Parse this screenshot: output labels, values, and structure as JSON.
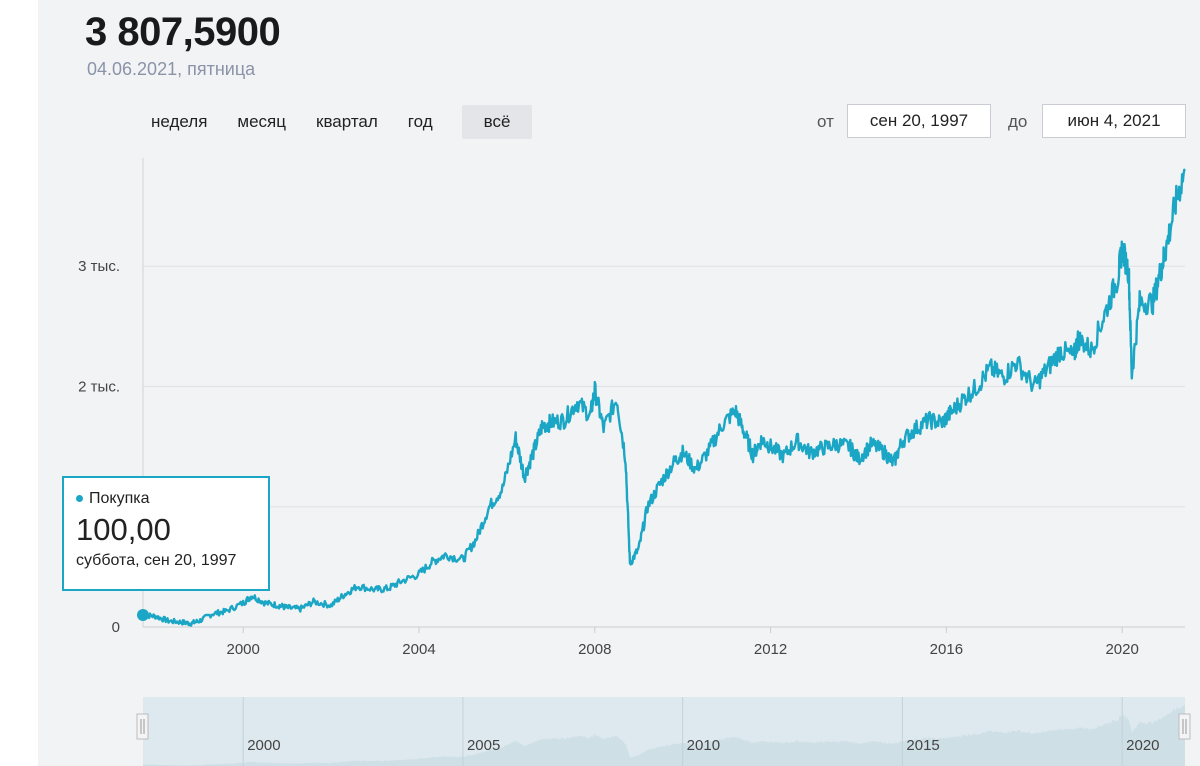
{
  "header": {
    "price": "3 807,5900",
    "date": "04.06.2021, пятница"
  },
  "ranges": {
    "week": "неделя",
    "month": "месяц",
    "quarter": "квартал",
    "year": "год",
    "all": "всё"
  },
  "date_range": {
    "from_label": "от",
    "from_value": "сен 20, 1997",
    "to_label": "до",
    "to_value": "июн 4, 2021"
  },
  "tooltip": {
    "series": "Покупка",
    "value": "100,00",
    "date": "суббота, сен 20, 1997"
  },
  "colors": {
    "line": "#1aa6c4",
    "navigator_fill": "#dde9ee"
  },
  "chart_data": {
    "type": "line",
    "title": "",
    "xlabel": "",
    "ylabel": "",
    "xlim": [
      1997.72,
      2021.43
    ],
    "ylim": [
      0,
      3900
    ],
    "y_ticks": [
      {
        "value": 0,
        "label": "0"
      },
      {
        "value": 1000,
        "label": ""
      },
      {
        "value": 2000,
        "label": "2 тыс."
      },
      {
        "value": 3000,
        "label": "3 тыс."
      }
    ],
    "x_ticks": [
      {
        "value": 2000,
        "label": "2000"
      },
      {
        "value": 2004,
        "label": "2004"
      },
      {
        "value": 2008,
        "label": "2008"
      },
      {
        "value": 2012,
        "label": "2012"
      },
      {
        "value": 2016,
        "label": "2016"
      },
      {
        "value": 2020,
        "label": "2020"
      }
    ],
    "navigator_ticks": [
      {
        "value": 2000,
        "label": "2000"
      },
      {
        "value": 2005,
        "label": "2005"
      },
      {
        "value": 2010,
        "label": "2010"
      },
      {
        "value": 2015,
        "label": "2015"
      },
      {
        "value": 2020,
        "label": "2020"
      }
    ],
    "series": [
      {
        "name": "Покупка",
        "x": [
          1997.72,
          1998.0,
          1998.3,
          1998.6,
          1998.8,
          1999.0,
          1999.3,
          1999.6,
          2000.0,
          2000.2,
          2000.5,
          2000.8,
          2001.0,
          2001.3,
          2001.6,
          2002.0,
          2002.3,
          2002.6,
          2003.0,
          2003.3,
          2003.6,
          2004.0,
          2004.3,
          2004.6,
          2005.0,
          2005.3,
          2005.6,
          2005.9,
          2006.2,
          2006.4,
          2006.6,
          2006.8,
          2007.0,
          2007.3,
          2007.6,
          2007.9,
          2008.0,
          2008.2,
          2008.5,
          2008.7,
          2008.8,
          2009.0,
          2009.2,
          2009.5,
          2009.8,
          2010.0,
          2010.3,
          2010.6,
          2010.9,
          2011.2,
          2011.4,
          2011.6,
          2011.8,
          2012.0,
          2012.3,
          2012.6,
          2012.9,
          2013.2,
          2013.5,
          2013.8,
          2014.0,
          2014.3,
          2014.6,
          2014.8,
          2015.0,
          2015.3,
          2015.6,
          2015.9,
          2016.1,
          2016.4,
          2016.7,
          2017.0,
          2017.3,
          2017.6,
          2018.0,
          2018.3,
          2018.6,
          2018.9,
          2019.0,
          2019.3,
          2019.6,
          2019.9,
          2020.0,
          2020.15,
          2020.22,
          2020.4,
          2020.7,
          2020.9,
          2021.0,
          2021.2,
          2021.43
        ],
        "values": [
          100,
          90,
          50,
          40,
          30,
          50,
          110,
          130,
          200,
          260,
          200,
          180,
          160,
          150,
          210,
          180,
          270,
          340,
          310,
          320,
          380,
          440,
          540,
          600,
          560,
          730,
          1000,
          1150,
          1570,
          1250,
          1450,
          1670,
          1700,
          1720,
          1870,
          1760,
          1970,
          1650,
          1900,
          1400,
          530,
          650,
          1000,
          1200,
          1370,
          1450,
          1310,
          1470,
          1680,
          1800,
          1620,
          1430,
          1560,
          1500,
          1420,
          1550,
          1450,
          1490,
          1520,
          1500,
          1400,
          1520,
          1450,
          1360,
          1550,
          1650,
          1720,
          1700,
          1780,
          1900,
          2000,
          2150,
          2080,
          2200,
          2000,
          2150,
          2300,
          2250,
          2400,
          2300,
          2600,
          2900,
          3150,
          2950,
          2100,
          2700,
          2700,
          3000,
          3150,
          3500,
          3807.59
        ]
      }
    ],
    "annotations": [
      {
        "x": 1997.72,
        "y": 100,
        "label": "Покупка 100,00"
      }
    ]
  }
}
